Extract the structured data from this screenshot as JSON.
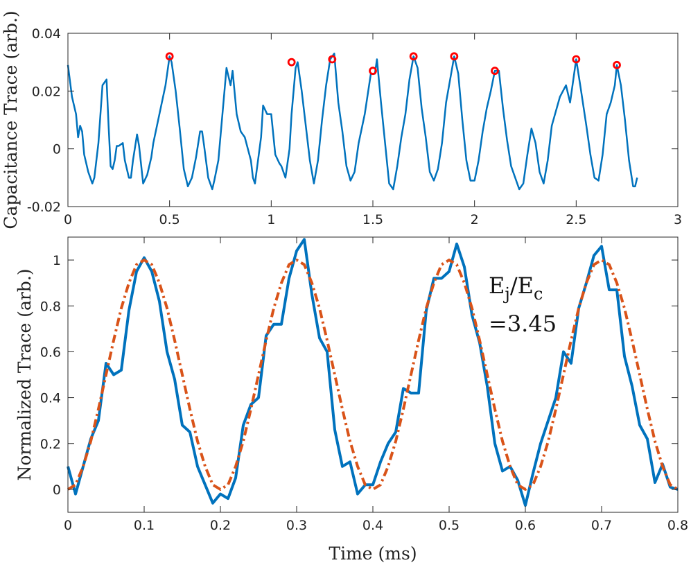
{
  "chart_data": [
    {
      "type": "line",
      "ylabel": "Capacitance Trace (arb.)",
      "xlim": [
        0,
        3
      ],
      "xticks": [
        0,
        0.5,
        1,
        1.5,
        2,
        2.5,
        3
      ],
      "ylim": [
        -0.02,
        0.04
      ],
      "yticks": [
        -0.02,
        0,
        0.02,
        0.04
      ],
      "series": [
        {
          "color": "#0072bd",
          "x": [
            0,
            0.02,
            0.04,
            0.05,
            0.06,
            0.07,
            0.08,
            0.1,
            0.12,
            0.13,
            0.15,
            0.17,
            0.19,
            0.2,
            0.21,
            0.22,
            0.23,
            0.24,
            0.25,
            0.27,
            0.28,
            0.3,
            0.31,
            0.32,
            0.34,
            0.35,
            0.37,
            0.39,
            0.4,
            0.41,
            0.42,
            0.45,
            0.48,
            0.5,
            0.51,
            0.53,
            0.55,
            0.57,
            0.59,
            0.61,
            0.63,
            0.65,
            0.66,
            0.67,
            0.69,
            0.71,
            0.72,
            0.74,
            0.77,
            0.78,
            0.79,
            0.8,
            0.81,
            0.83,
            0.85,
            0.86,
            0.87,
            0.9,
            0.91,
            0.92,
            0.95,
            0.96,
            0.98,
            1.0,
            1.02,
            1.04,
            1.05,
            1.07,
            1.09,
            1.1,
            1.12,
            1.13,
            1.15,
            1.17,
            1.19,
            1.21,
            1.23,
            1.25,
            1.27,
            1.29,
            1.31,
            1.33,
            1.35,
            1.37,
            1.39,
            1.41,
            1.43,
            1.46,
            1.49,
            1.51,
            1.52,
            1.54,
            1.56,
            1.58,
            1.6,
            1.62,
            1.64,
            1.66,
            1.68,
            1.7,
            1.72,
            1.74,
            1.76,
            1.78,
            1.8,
            1.82,
            1.84,
            1.86,
            1.88,
            1.9,
            1.92,
            1.94,
            1.96,
            1.98,
            2.0,
            2.02,
            2.04,
            2.06,
            2.08,
            2.1,
            2.12,
            2.14,
            2.16,
            2.18,
            2.2,
            2.22,
            2.24,
            2.26,
            2.28,
            2.3,
            2.32,
            2.34,
            2.36,
            2.38,
            2.42,
            2.45,
            2.47,
            2.49,
            2.5,
            2.52,
            2.55,
            2.57,
            2.59,
            2.61,
            2.63,
            2.65,
            2.67,
            2.69,
            2.7,
            2.72,
            2.74,
            2.76,
            2.78,
            2.79,
            2.8
          ],
          "values": [
            0.029,
            0.018,
            0.012,
            0.004,
            0.008,
            0.006,
            -0.002,
            -0.008,
            -0.012,
            -0.01,
            0.002,
            0.022,
            0.024,
            0.008,
            -0.006,
            -0.007,
            -0.004,
            0.001,
            0.001,
            0.002,
            -0.004,
            -0.01,
            -0.01,
            -0.004,
            0.005,
            0.001,
            -0.012,
            -0.009,
            -0.006,
            -0.003,
            0.002,
            0.012,
            0.022,
            0.032,
            0.03,
            0.02,
            0.007,
            -0.007,
            -0.013,
            -0.01,
            -0.003,
            0.006,
            0.006,
            0.001,
            -0.01,
            -0.014,
            -0.011,
            -0.004,
            0.02,
            0.028,
            0.025,
            0.022,
            0.027,
            0.012,
            0.006,
            0.005,
            0.004,
            -0.004,
            -0.01,
            -0.012,
            0.004,
            0.015,
            0.012,
            0.012,
            -0.002,
            -0.005,
            -0.006,
            -0.01,
            0.0,
            0.012,
            0.028,
            0.03,
            0.02,
            0.008,
            -0.004,
            -0.012,
            -0.004,
            0.01,
            0.022,
            0.031,
            0.033,
            0.016,
            0.006,
            -0.006,
            -0.011,
            -0.008,
            0.002,
            0.012,
            0.026,
            0.026,
            0.031,
            0.016,
            0.002,
            -0.012,
            -0.014,
            -0.006,
            0.004,
            0.012,
            0.024,
            0.032,
            0.028,
            0.014,
            0.004,
            -0.008,
            -0.011,
            -0.007,
            0.002,
            0.016,
            0.024,
            0.032,
            0.026,
            0.01,
            -0.004,
            -0.011,
            -0.011,
            -0.004,
            0.006,
            0.014,
            0.02,
            0.027,
            0.027,
            0.014,
            0.003,
            -0.006,
            -0.01,
            -0.014,
            -0.012,
            -0.002,
            0.007,
            0.002,
            -0.008,
            -0.012,
            -0.004,
            0.008,
            0.018,
            0.022,
            0.016,
            0.026,
            0.031,
            0.022,
            0.008,
            -0.002,
            -0.01,
            -0.011,
            -0.002,
            0.012,
            0.016,
            0.022,
            0.029,
            0.022,
            0.01,
            -0.004,
            -0.013,
            -0.013,
            -0.01
          ]
        },
        {
          "color": "#ff0000",
          "marker": "circle",
          "x": [
            0.5,
            1.1,
            1.3,
            1.5,
            1.7,
            1.9,
            2.1,
            2.5,
            2.7
          ],
          "values": [
            0.032,
            0.03,
            0.031,
            0.027,
            0.032,
            0.032,
            0.027,
            0.031,
            0.029
          ]
        }
      ]
    },
    {
      "type": "line",
      "xlabel": "Time (ms)",
      "ylabel": "Normalized Trace (arb.)",
      "annotation": [
        "E",
        "j",
        "/E",
        "c",
        "=3.45"
      ],
      "xlim": [
        0,
        0.8
      ],
      "xticks": [
        0,
        0.1,
        0.2,
        0.3,
        0.4,
        0.5,
        0.6,
        0.7,
        0.8
      ],
      "ylim": [
        -0.1,
        1.1
      ],
      "yticks": [
        0,
        0.2,
        0.4,
        0.6,
        0.8,
        1
      ],
      "x": [
        0,
        0.01,
        0.02,
        0.03,
        0.04,
        0.05,
        0.06,
        0.07,
        0.08,
        0.09,
        0.1,
        0.11,
        0.12,
        0.13,
        0.14,
        0.15,
        0.16,
        0.17,
        0.18,
        0.19,
        0.2,
        0.21,
        0.22,
        0.23,
        0.24,
        0.25,
        0.26,
        0.27,
        0.28,
        0.29,
        0.3,
        0.31,
        0.32,
        0.33,
        0.34,
        0.35,
        0.36,
        0.37,
        0.38,
        0.39,
        0.4,
        0.41,
        0.42,
        0.43,
        0.44,
        0.45,
        0.46,
        0.47,
        0.48,
        0.49,
        0.5,
        0.51,
        0.52,
        0.53,
        0.54,
        0.55,
        0.56,
        0.57,
        0.58,
        0.59,
        0.6,
        0.61,
        0.62,
        0.63,
        0.64,
        0.65,
        0.66,
        0.67,
        0.68,
        0.69,
        0.7,
        0.71,
        0.72,
        0.73,
        0.74,
        0.75,
        0.76,
        0.77,
        0.78,
        0.79,
        0.8
      ],
      "series": [
        {
          "color": "#0072bd",
          "dash": "solid",
          "values": [
            0.1,
            -0.02,
            0.1,
            0.22,
            0.3,
            0.55,
            0.5,
            0.52,
            0.78,
            0.95,
            1.01,
            0.95,
            0.82,
            0.6,
            0.48,
            0.28,
            0.25,
            0.1,
            0.02,
            -0.06,
            -0.02,
            -0.04,
            0.05,
            0.28,
            0.37,
            0.4,
            0.67,
            0.72,
            0.72,
            0.92,
            1.04,
            1.09,
            0.85,
            0.66,
            0.6,
            0.26,
            0.1,
            0.12,
            -0.02,
            0.02,
            0.02,
            0.12,
            0.2,
            0.25,
            0.44,
            0.42,
            0.42,
            0.78,
            0.92,
            0.92,
            0.95,
            1.07,
            0.97,
            0.76,
            0.64,
            0.45,
            0.2,
            0.08,
            0.1,
            0.04,
            -0.07,
            0.07,
            0.2,
            0.3,
            0.4,
            0.6,
            0.55,
            0.79,
            0.9,
            1.02,
            1.06,
            0.87,
            0.87,
            0.58,
            0.45,
            0.28,
            0.22,
            0.03,
            0.11,
            0.01,
            0.0
          ]
        },
        {
          "color": "#d95319",
          "dash": "dashdot",
          "values": [
            0,
            0.02,
            0.1,
            0.21,
            0.35,
            0.5,
            0.65,
            0.79,
            0.9,
            0.98,
            1,
            0.98,
            0.9,
            0.79,
            0.65,
            0.5,
            0.35,
            0.21,
            0.1,
            0.02,
            0,
            0.02,
            0.1,
            0.21,
            0.35,
            0.5,
            0.65,
            0.79,
            0.9,
            0.98,
            1,
            0.98,
            0.9,
            0.79,
            0.65,
            0.5,
            0.35,
            0.21,
            0.1,
            0.02,
            0,
            0.02,
            0.1,
            0.21,
            0.35,
            0.5,
            0.65,
            0.79,
            0.9,
            0.98,
            1,
            0.98,
            0.9,
            0.79,
            0.65,
            0.5,
            0.35,
            0.21,
            0.1,
            0.02,
            0,
            0.02,
            0.1,
            0.21,
            0.35,
            0.5,
            0.65,
            0.79,
            0.9,
            0.98,
            1,
            0.98,
            0.9,
            0.79,
            0.65,
            0.5,
            0.35,
            0.21,
            0.1,
            0.02,
            0
          ]
        }
      ]
    }
  ]
}
